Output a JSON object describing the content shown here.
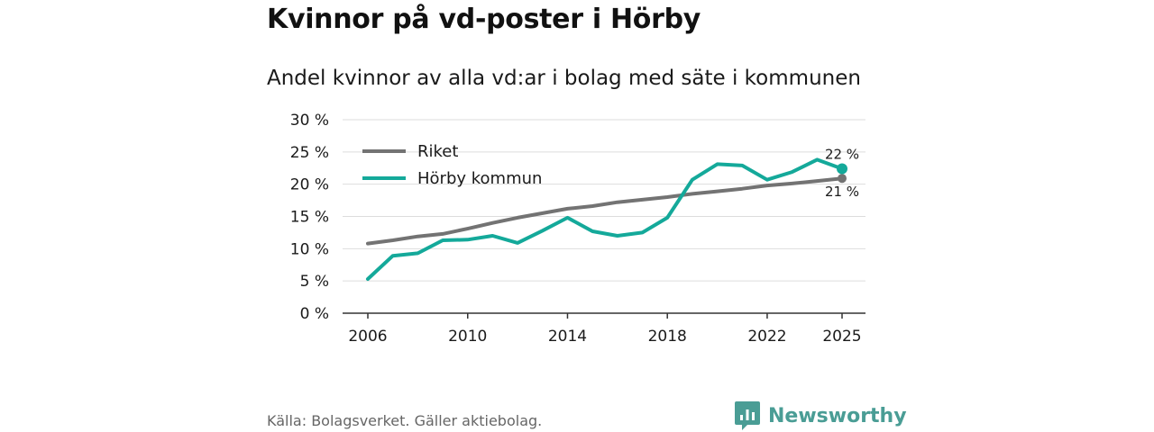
{
  "header": {
    "title": "Kvinnor på vd-poster i Hörby",
    "subtitle": "Andel kvinnor av alla vd:ar i bolag med säte i kommunen"
  },
  "footer": {
    "source": "Källa: Bolagsverket. Gäller aktiebolag.",
    "brand": "Newsworthy"
  },
  "colors": {
    "riket": "#737373",
    "horby": "#14a99a",
    "grid": "#dddddd",
    "axis": "#333333",
    "brand": "#4a9d95"
  },
  "chart_data": {
    "type": "line",
    "title": "Andel kvinnor av alla vd:ar i bolag med säte i kommunen",
    "xlabel": "",
    "ylabel": "",
    "x": [
      2006,
      2007,
      2008,
      2009,
      2010,
      2011,
      2012,
      2013,
      2014,
      2015,
      2016,
      2017,
      2018,
      2019,
      2020,
      2021,
      2022,
      2023,
      2024,
      2025
    ],
    "xticks": [
      "2006",
      "2010",
      "2014",
      "2018",
      "2022",
      "2025"
    ],
    "xlim": [
      2006,
      2025
    ],
    "ylim": [
      0,
      30
    ],
    "yticks": [
      0,
      5,
      10,
      15,
      20,
      25,
      30
    ],
    "ytick_labels": [
      "0 %",
      "5 %",
      "10 %",
      "15 %",
      "20 %",
      "25 %",
      "30 %"
    ],
    "grid": true,
    "legend_position": "top-left",
    "series": [
      {
        "name": "Riket",
        "color": "#737373",
        "values": [
          10.8,
          11.3,
          11.9,
          12.3,
          13.1,
          14.0,
          14.8,
          15.5,
          16.2,
          16.6,
          17.2,
          17.6,
          18.0,
          18.5,
          18.9,
          19.3,
          19.8,
          20.1,
          20.5,
          20.9
        ],
        "end_label": "21 %"
      },
      {
        "name": "Hörby kommun",
        "color": "#14a99a",
        "values": [
          5.3,
          8.9,
          9.3,
          11.3,
          11.4,
          12.0,
          10.9,
          12.8,
          14.8,
          12.7,
          12.0,
          12.5,
          14.8,
          20.7,
          23.1,
          22.9,
          20.7,
          21.9,
          23.8,
          22.4
        ],
        "end_label": "22 %"
      }
    ]
  }
}
